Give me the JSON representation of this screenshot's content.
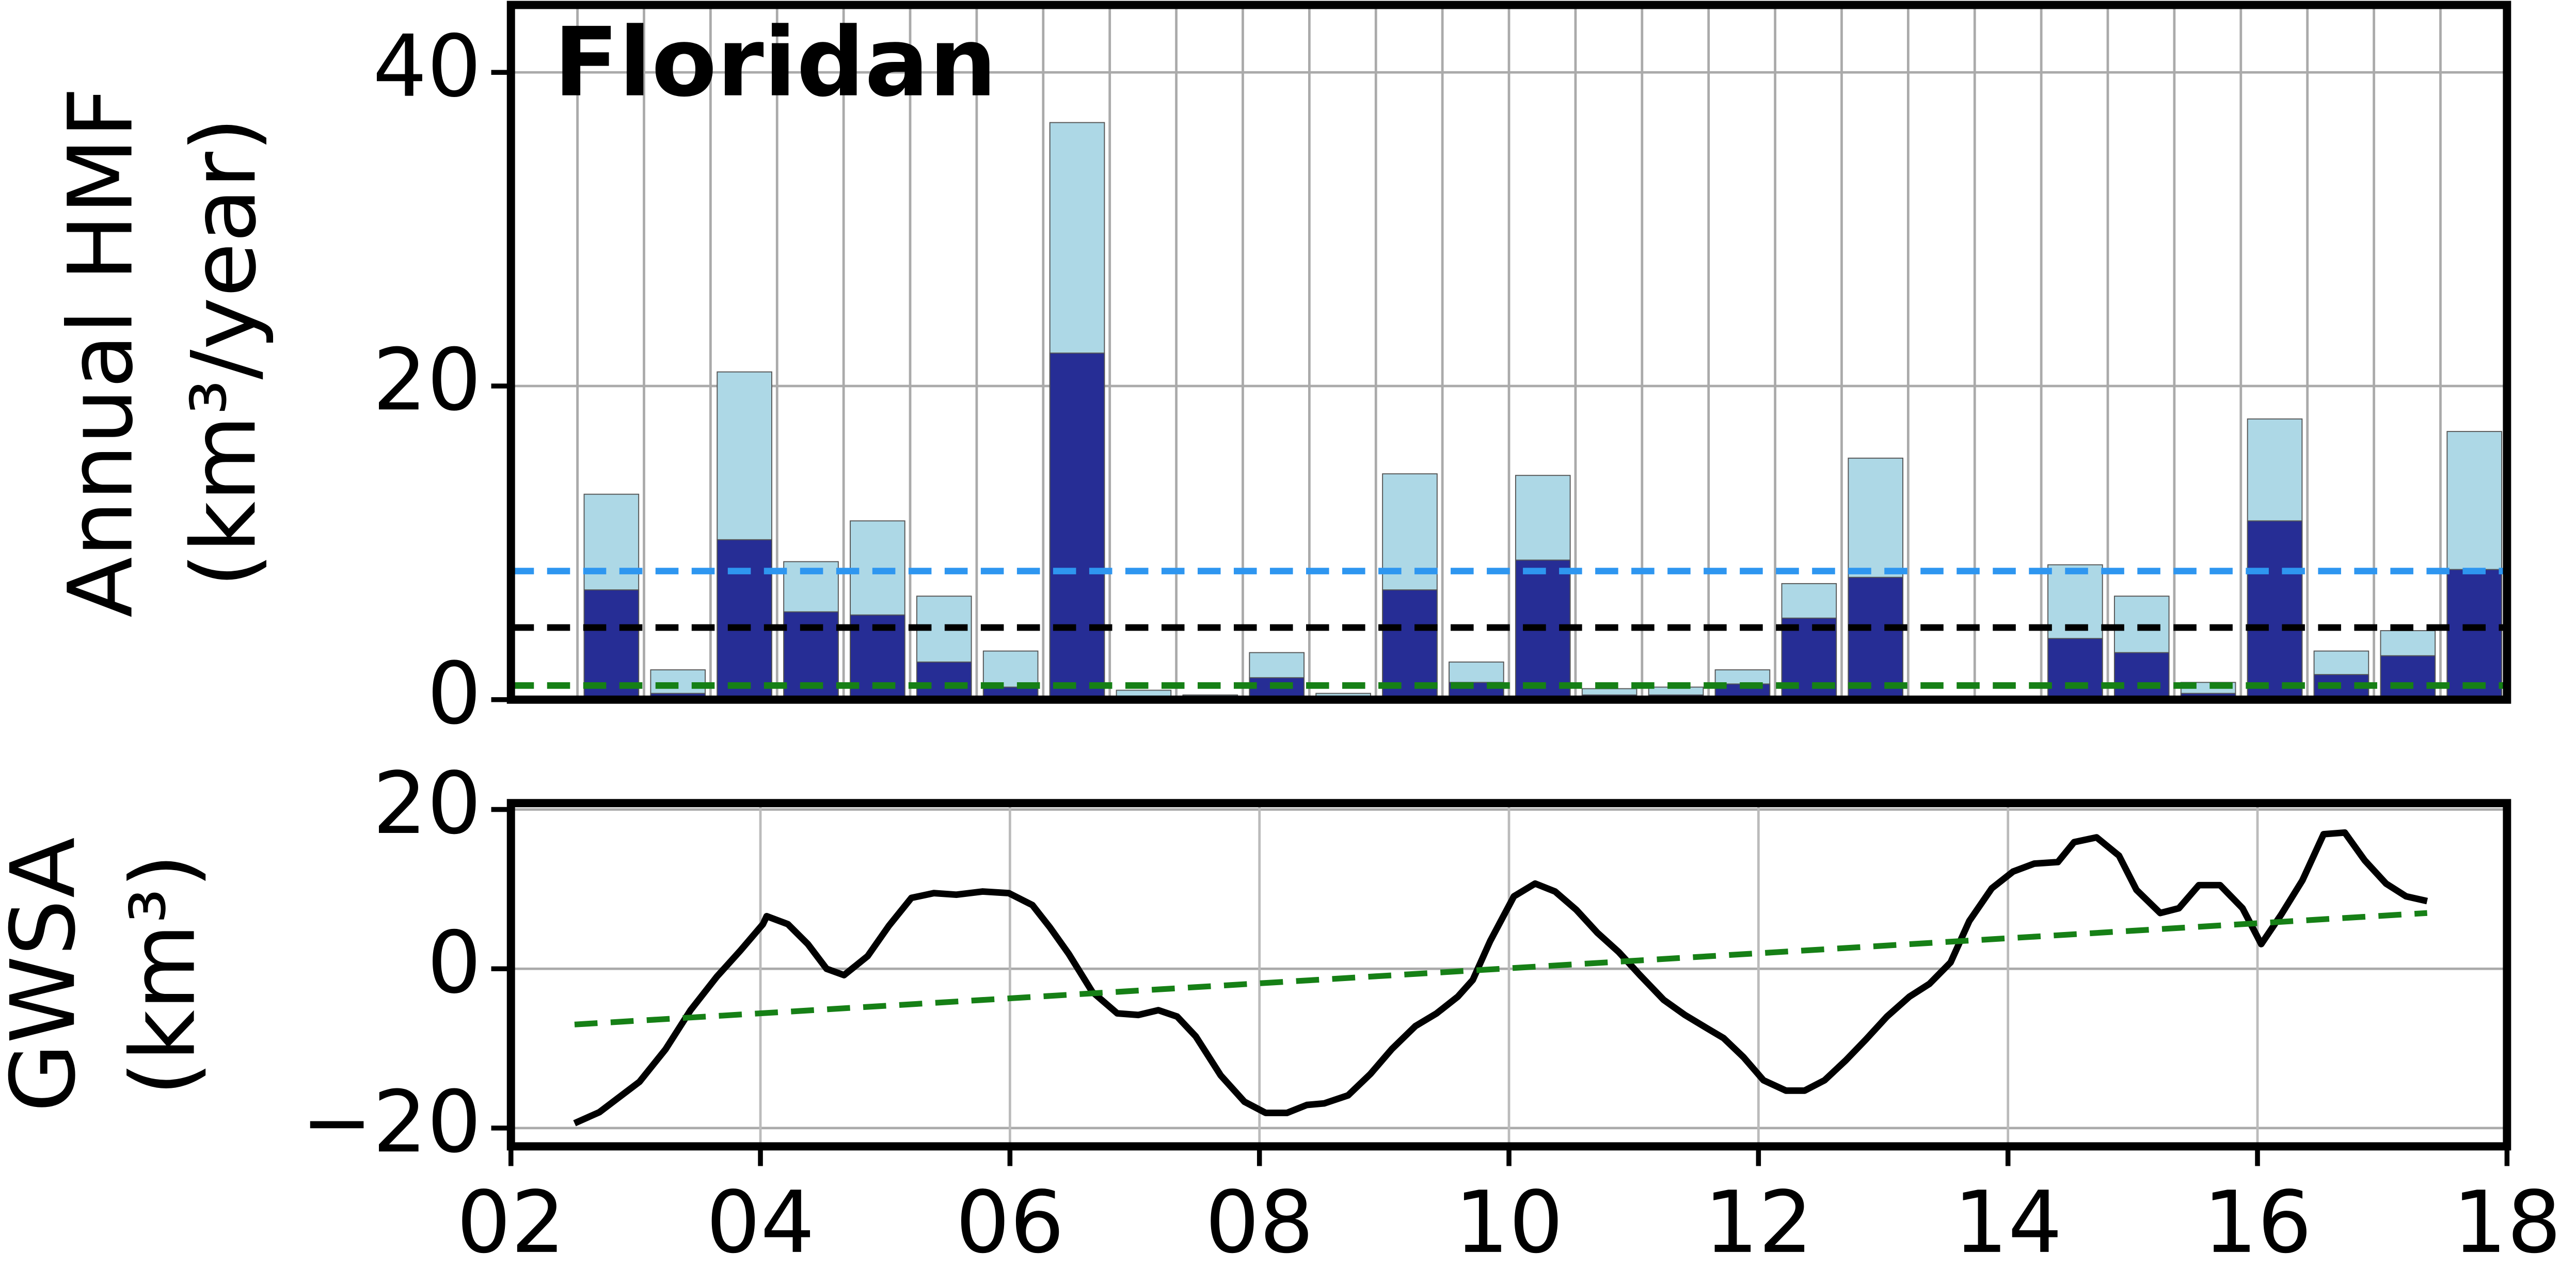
{
  "chart_data": [
    {
      "type": "bar",
      "title": "Floridan",
      "ylabel": [
        "Annual HMF",
        "(km³/year)"
      ],
      "categories": [
        null,
        null,
        null,
        null,
        null,
        null,
        null,
        null,
        null,
        null,
        null,
        null,
        null,
        null,
        null,
        null,
        null,
        null,
        null,
        null,
        null,
        null,
        null,
        null,
        null,
        null,
        null,
        null,
        null,
        null
      ],
      "series": [
        {
          "color": "#add8e6",
          "values": [
            0,
            13.1,
            1.9,
            20.9,
            8.8,
            11.4,
            6.6,
            3.1,
            36.8,
            0.6,
            0.3,
            3.0,
            0.4,
            14.4,
            2.4,
            14.3,
            0.7,
            0.8,
            1.9,
            7.4,
            15.4,
            0,
            0,
            8.6,
            6.6,
            1.1,
            17.9,
            3.1,
            4.4,
            17.1
          ]
        },
        {
          "color": "#262d95",
          "values": [
            0,
            7.0,
            0.4,
            10.2,
            5.6,
            5.4,
            2.4,
            0.8,
            22.1,
            0.2,
            0.1,
            1.4,
            0.1,
            7.0,
            1.1,
            8.9,
            0.3,
            0.3,
            1.0,
            5.2,
            7.8,
            0,
            0,
            3.9,
            3.0,
            0.4,
            11.4,
            1.6,
            2.8,
            8.3
          ]
        }
      ],
      "hlines": [
        {
          "value": 8.2,
          "color": "#2e96f0"
        },
        {
          "value": 4.6,
          "color": "#000000"
        },
        {
          "value": 0.9,
          "color": "#168016"
        }
      ],
      "ylim": [
        0,
        44.3
      ],
      "yticks": [
        0,
        20,
        40
      ],
      "grid": true
    },
    {
      "type": "line",
      "ylabel": [
        "GWSA",
        "(km³)"
      ],
      "series": [
        {
          "color": "#000000",
          "style": "solid",
          "x": [
            2002.51,
            2002.71,
            2003.03,
            2003.24,
            2003.44,
            2003.65,
            2003.84,
            2004.02,
            2004.05,
            2004.22,
            2004.38,
            2004.53,
            2004.67,
            2004.86,
            2005.03,
            2005.21,
            2005.39,
            2005.57,
            2005.78,
            2005.99,
            2006.18,
            2006.32,
            2006.47,
            2006.66,
            2006.86,
            2007.03,
            2007.19,
            2007.34,
            2007.49,
            2007.69,
            2007.88,
            2008.05,
            2008.22,
            2008.38,
            2008.52,
            2008.71,
            2008.89,
            2009.06,
            2009.25,
            2009.42,
            2009.59,
            2009.71,
            2009.85,
            2010.04,
            2010.21,
            2010.37,
            2010.54,
            2010.71,
            2010.88,
            2011.05,
            2011.24,
            2011.41,
            2011.58,
            2011.72,
            2011.88,
            2012.04,
            2012.22,
            2012.37,
            2012.53,
            2012.7,
            2012.86,
            2013.03,
            2013.21,
            2013.37,
            2013.54,
            2013.69,
            2013.87,
            2014.04,
            2014.21,
            2014.4,
            2014.53,
            2014.71,
            2014.89,
            2015.03,
            2015.22,
            2015.37,
            2015.53,
            2015.7,
            2015.88,
            2016.03,
            2016.19,
            2016.36,
            2016.53,
            2016.7,
            2016.86,
            2017.03,
            2017.19,
            2017.36
          ],
          "values": [
            -19.4,
            -18,
            -14.2,
            -10.1,
            -5.2,
            -1,
            2.3,
            5.6,
            6.6,
            5.6,
            3.1,
            0,
            -0.8,
            1.6,
            5.4,
            8.9,
            9.5,
            9.3,
            9.7,
            9.5,
            8,
            5.2,
            1.9,
            -2.9,
            -5.6,
            -5.8,
            -5.2,
            -6,
            -8.5,
            -13.4,
            -16.7,
            -18.1,
            -18.1,
            -17.1,
            -16.9,
            -15.9,
            -13.2,
            -10.1,
            -7.2,
            -5.6,
            -3.5,
            -1.4,
            3.5,
            9.1,
            10.7,
            9.7,
            7.4,
            4.5,
            2.1,
            -0.8,
            -3.9,
            -5.8,
            -7.4,
            -8.7,
            -11.1,
            -14,
            -15.3,
            -15.3,
            -14,
            -11.5,
            -8.9,
            -6,
            -3.5,
            -1.9,
            0.8,
            6,
            10.1,
            12.2,
            13.2,
            13.4,
            15.9,
            16.5,
            14.2,
            9.9,
            7,
            7.6,
            10.5,
            10.5,
            7.6,
            3.1,
            6.8,
            11.1,
            16.9,
            17.1,
            13.6,
            10.7,
            9.1,
            8.5
          ]
        },
        {
          "color": "#168016",
          "style": "dashed",
          "x": [
            2002.51,
            2017.36
          ],
          "values": [
            -7,
            7
          ]
        }
      ],
      "xlim": [
        2002,
        2018
      ],
      "xticks": [
        {
          "value": 2002,
          "label": "02"
        },
        {
          "value": 2004,
          "label": "04"
        },
        {
          "value": 2006,
          "label": "06"
        },
        {
          "value": 2008,
          "label": "08"
        },
        {
          "value": 2010,
          "label": "10"
        },
        {
          "value": 2012,
          "label": "12"
        },
        {
          "value": 2014,
          "label": "14"
        },
        {
          "value": 2016,
          "label": "16"
        },
        {
          "value": 2018,
          "label": "18"
        }
      ],
      "ylim": [
        -22.3,
        20.8
      ],
      "yticks": [
        {
          "value": -20,
          "label": "−20"
        },
        0,
        20
      ],
      "grid": true
    }
  ]
}
